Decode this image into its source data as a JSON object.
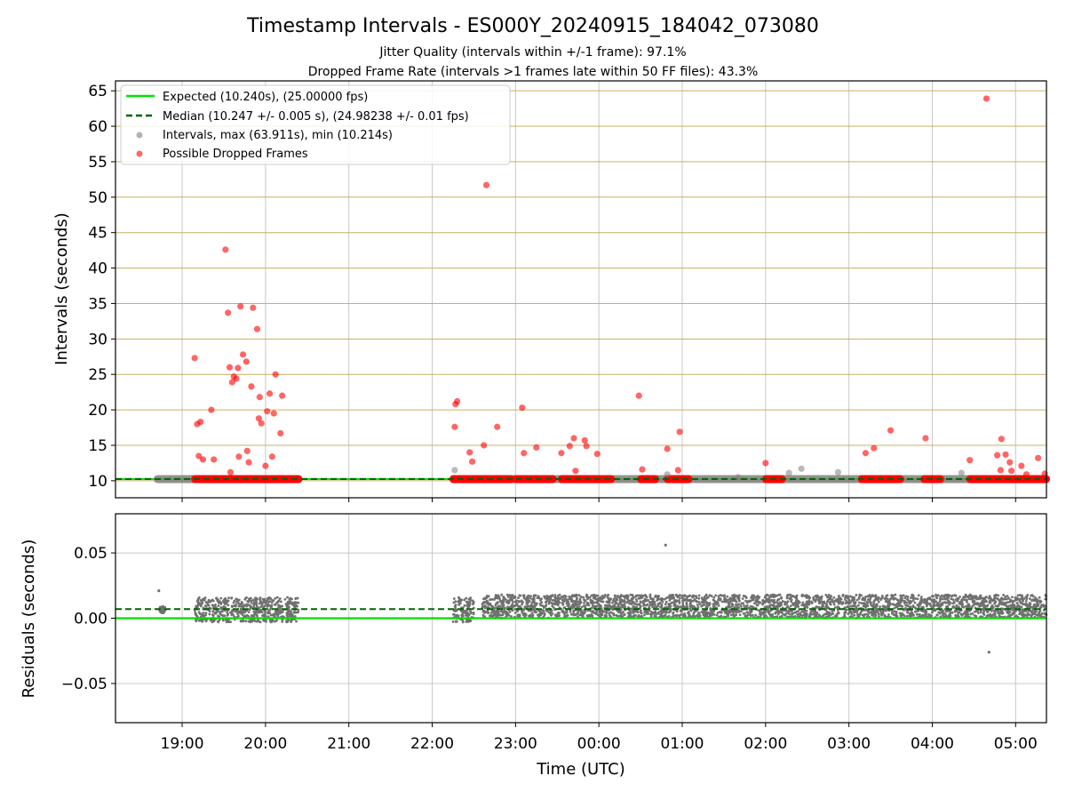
{
  "title": "Timestamp Intervals - ES000Y_20240915_184042_073080",
  "subtitle1": "Jitter Quality (intervals within +/-1 frame): 97.1%",
  "subtitle2": "Dropped Frame Rate (intervals >1 frames late within 50 FF files): 43.3%",
  "colors": {
    "expected": "#00e000",
    "median": "#006400",
    "intervals": "#808080",
    "dropped": "#ff0000",
    "hgrid_top": "#c9b060",
    "grid": "#c8c8c8",
    "residual_points": "#707070"
  },
  "chart_data": [
    {
      "type": "scatter",
      "ylabel": "Intervals (seconds)",
      "ylim": [
        7.6,
        66.4
      ],
      "xlim": [
        18.2,
        5.37
      ],
      "y_ticks": [
        10,
        15,
        20,
        25,
        30,
        35,
        40,
        45,
        50,
        55,
        60,
        65
      ],
      "x_ticks": [
        "19:00",
        "20:00",
        "21:00",
        "22:00",
        "23:00",
        "00:00",
        "01:00",
        "02:00",
        "03:00",
        "04:00",
        "05:00"
      ],
      "x_tick_hours": [
        19,
        20,
        21,
        22,
        23,
        0,
        1,
        2,
        3,
        4,
        5
      ],
      "grid": "horizontal goldenrod lines, vertical gray lines",
      "legend_position": "top-left",
      "legend": [
        "Expected (10.240s), (25.00000 fps)",
        "Median (10.247 +/- 0.005 s), (24.98238 +/- 0.01 fps)",
        "Intervals, max (63.911s), min (10.214s)",
        "Possible Dropped Frames"
      ],
      "expected_value": 10.24,
      "median_value": 10.247,
      "baseline_segments": [
        [
          18.7,
          20.4
        ],
        [
          22.25,
          5.37
        ]
      ],
      "dropped_baseline_segments": [
        [
          19.15,
          20.4
        ],
        [
          22.25,
          22.95
        ],
        [
          23.0,
          23.45
        ],
        [
          23.55,
          0.15
        ],
        [
          0.5,
          0.68
        ],
        [
          0.82,
          1.08
        ],
        [
          2.0,
          2.2
        ],
        [
          3.15,
          3.62
        ],
        [
          3.9,
          4.1
        ],
        [
          4.45,
          5.37
        ]
      ],
      "dropped_points": [
        [
          19.15,
          27.3
        ],
        [
          19.18,
          18.0
        ],
        [
          19.2,
          13.5
        ],
        [
          19.22,
          18.3
        ],
        [
          19.25,
          13.0
        ],
        [
          19.35,
          20.0
        ],
        [
          19.38,
          13.0
        ],
        [
          19.52,
          42.6
        ],
        [
          19.55,
          33.7
        ],
        [
          19.57,
          26.0
        ],
        [
          19.58,
          11.2
        ],
        [
          19.6,
          23.9
        ],
        [
          19.62,
          24.7
        ],
        [
          19.65,
          24.4
        ],
        [
          19.67,
          25.9
        ],
        [
          19.68,
          13.4
        ],
        [
          19.7,
          34.6
        ],
        [
          19.73,
          27.8
        ],
        [
          19.77,
          26.8
        ],
        [
          19.78,
          14.2
        ],
        [
          19.8,
          12.6
        ],
        [
          19.83,
          23.3
        ],
        [
          19.85,
          34.4
        ],
        [
          19.9,
          31.4
        ],
        [
          19.92,
          18.8
        ],
        [
          19.93,
          21.8
        ],
        [
          19.95,
          18.1
        ],
        [
          20.0,
          12.1
        ],
        [
          20.02,
          19.8
        ],
        [
          20.05,
          22.3
        ],
        [
          20.08,
          13.4
        ],
        [
          20.1,
          19.5
        ],
        [
          20.12,
          25.0
        ],
        [
          20.18,
          16.7
        ],
        [
          20.2,
          22.0
        ],
        [
          22.27,
          17.6
        ],
        [
          22.28,
          20.8
        ],
        [
          22.3,
          21.2
        ],
        [
          22.45,
          14.0
        ],
        [
          22.48,
          12.7
        ],
        [
          22.62,
          15.0
        ],
        [
          22.65,
          51.7
        ],
        [
          22.78,
          17.6
        ],
        [
          23.08,
          20.3
        ],
        [
          23.1,
          13.9
        ],
        [
          23.25,
          14.7
        ],
        [
          23.55,
          13.9
        ],
        [
          23.65,
          14.9
        ],
        [
          23.7,
          16.0
        ],
        [
          23.72,
          11.4
        ],
        [
          23.83,
          15.7
        ],
        [
          23.85,
          14.9
        ],
        [
          23.98,
          13.8
        ],
        [
          0.48,
          22.0
        ],
        [
          0.52,
          11.6
        ],
        [
          0.82,
          14.5
        ],
        [
          0.95,
          11.5
        ],
        [
          0.97,
          16.9
        ],
        [
          2.0,
          12.5
        ],
        [
          3.2,
          13.9
        ],
        [
          3.3,
          14.6
        ],
        [
          3.5,
          17.1
        ],
        [
          3.92,
          16.0
        ],
        [
          4.45,
          12.9
        ],
        [
          4.65,
          63.9
        ],
        [
          4.78,
          13.6
        ],
        [
          4.82,
          11.5
        ],
        [
          4.83,
          15.9
        ],
        [
          4.88,
          13.7
        ],
        [
          4.93,
          12.6
        ],
        [
          4.95,
          11.4
        ],
        [
          5.07,
          12.1
        ],
        [
          5.13,
          10.9
        ],
        [
          5.27,
          13.2
        ],
        [
          5.35,
          11.0
        ]
      ],
      "gray_points": [
        [
          22.27,
          11.5
        ],
        [
          0.82,
          10.9
        ],
        [
          1.67,
          10.5
        ],
        [
          2.28,
          11.1
        ],
        [
          2.43,
          11.7
        ],
        [
          2.87,
          11.2
        ],
        [
          4.35,
          11.1
        ]
      ]
    },
    {
      "type": "scatter",
      "xlabel": "Time (UTC)",
      "ylabel": "Residuals (seconds)",
      "ylim": [
        -0.08,
        0.08
      ],
      "y_ticks": [
        -0.05,
        0.0,
        0.05
      ],
      "y_tick_labels": [
        "−0.05",
        "0.00",
        "0.05"
      ],
      "expected_residual": 0.0,
      "median_residual": 0.007,
      "residual_clusters": [
        {
          "range": [
            18.72,
            18.8
          ],
          "ymin": 0.004,
          "ymax": 0.009
        },
        {
          "range": [
            19.15,
            20.4
          ],
          "ymin": -0.003,
          "ymax": 0.016
        },
        {
          "range": [
            22.25,
            22.5
          ],
          "ymin": -0.003,
          "ymax": 0.016
        },
        {
          "range": [
            22.6,
            5.37
          ],
          "ymin": 0.0,
          "ymax": 0.018
        }
      ],
      "outliers": [
        [
          18.72,
          0.021
        ],
        [
          0.8,
          0.056
        ],
        [
          4.68,
          -0.026
        ]
      ]
    }
  ]
}
